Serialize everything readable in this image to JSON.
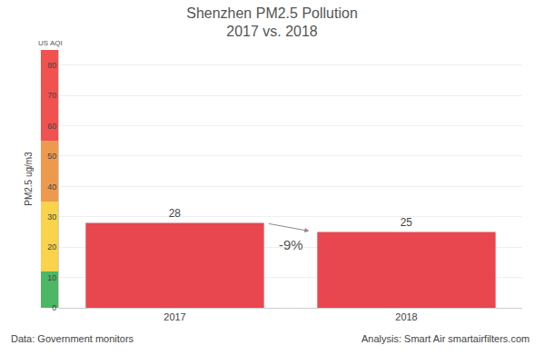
{
  "chart_data": {
    "type": "bar",
    "title": "Shenzhen PM2.5 Pollution",
    "subtitle": "2017 vs. 2018",
    "y_label": "PM2.5 ug/m3",
    "aqi_label": "US AQI",
    "categories": [
      "2017",
      "2018"
    ],
    "values": [
      28,
      25
    ],
    "color": "#e8474f",
    "data_labels": true,
    "ylim": [
      0,
      85
    ],
    "yticks": [
      0,
      10,
      20,
      30,
      40,
      50,
      60,
      70,
      80
    ],
    "grid": true,
    "annotations": [
      "-9%"
    ],
    "source": "Data: Government monitors",
    "credit": "Analysis: Smart Air smartairfilters.com",
    "aqi_bands": [
      {
        "from": 0,
        "to": 12,
        "color": "#4cb764"
      },
      {
        "from": 12,
        "to": 35,
        "color": "#f8d34b"
      },
      {
        "from": 35,
        "to": 55,
        "color": "#ee9a4e"
      },
      {
        "from": 55,
        "to": 85,
        "color": "#f1524f"
      }
    ]
  }
}
